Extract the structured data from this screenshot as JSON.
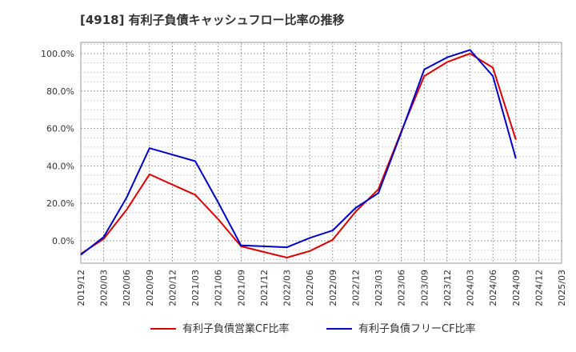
{
  "chart_data": {
    "type": "line",
    "title": "[4918]  有利子負債キャッシュフロー比率の推移",
    "xlabel": "",
    "ylabel": "",
    "ylim": [
      -12,
      106
    ],
    "yticks": [
      0,
      20,
      40,
      60,
      80,
      100
    ],
    "ytick_labels": [
      "0.0%",
      "20.0%",
      "40.0%",
      "60.0%",
      "80.0%",
      "100.0%"
    ],
    "xtick_labels": [
      "2019/12",
      "2020/03",
      "2020/06",
      "2020/09",
      "2020/12",
      "2021/03",
      "2021/06",
      "2021/09",
      "2021/12",
      "2022/03",
      "2022/06",
      "2022/09",
      "2022/12",
      "2023/03",
      "2023/06",
      "2023/09",
      "2023/12",
      "2024/03",
      "2024/06",
      "2024/09",
      "2024/12",
      "2025/03"
    ],
    "grid": true,
    "legend_position": "bottom",
    "series": [
      {
        "name": "有利子負債営業CF比率",
        "color": "#dd0000",
        "values": [
          {
            "x": "2019/12",
            "y": -7.0
          },
          {
            "x": "2020/03",
            "y": 1.0
          },
          {
            "x": "2020/06",
            "y": 16.5
          },
          {
            "x": "2020/09",
            "y": 35.5
          },
          {
            "x": "2020/12",
            "y": 30.0
          },
          {
            "x": "2021/03",
            "y": 24.5
          },
          {
            "x": "2021/06",
            "y": 11.5
          },
          {
            "x": "2021/09",
            "y": -3.0
          },
          {
            "x": "2021/12",
            "y": -6.0
          },
          {
            "x": "2022/03",
            "y": -9.0
          },
          {
            "x": "2022/06",
            "y": -5.5
          },
          {
            "x": "2022/09",
            "y": 0.5
          },
          {
            "x": "2022/12",
            "y": 15.5
          },
          {
            "x": "2023/03",
            "y": 27.5
          },
          {
            "x": "2023/06",
            "y": 58.5
          },
          {
            "x": "2023/09",
            "y": 88.0
          },
          {
            "x": "2023/12",
            "y": 95.5
          },
          {
            "x": "2024/03",
            "y": 100.0
          },
          {
            "x": "2024/06",
            "y": 92.5
          },
          {
            "x": "2024/09",
            "y": 54.0
          }
        ]
      },
      {
        "name": "有利子負債フリーCF比率",
        "color": "#0000cc",
        "values": [
          {
            "x": "2019/12",
            "y": -7.5
          },
          {
            "x": "2020/03",
            "y": 2.0
          },
          {
            "x": "2020/06",
            "y": 23.0
          },
          {
            "x": "2020/09",
            "y": 49.5
          },
          {
            "x": "2020/12",
            "y": 46.0
          },
          {
            "x": "2021/03",
            "y": 42.5
          },
          {
            "x": "2021/06",
            "y": 20.5
          },
          {
            "x": "2021/09",
            "y": -2.5
          },
          {
            "x": "2021/12",
            "y": -3.0
          },
          {
            "x": "2022/03",
            "y": -3.5
          },
          {
            "x": "2022/06",
            "y": 1.5
          },
          {
            "x": "2022/09",
            "y": 5.5
          },
          {
            "x": "2022/12",
            "y": 17.5
          },
          {
            "x": "2023/03",
            "y": 25.5
          },
          {
            "x": "2023/06",
            "y": 58.0
          },
          {
            "x": "2023/09",
            "y": 91.5
          },
          {
            "x": "2023/12",
            "y": 98.0
          },
          {
            "x": "2024/03",
            "y": 102.0
          },
          {
            "x": "2024/06",
            "y": 88.0
          },
          {
            "x": "2024/09",
            "y": 44.0
          }
        ]
      }
    ]
  }
}
